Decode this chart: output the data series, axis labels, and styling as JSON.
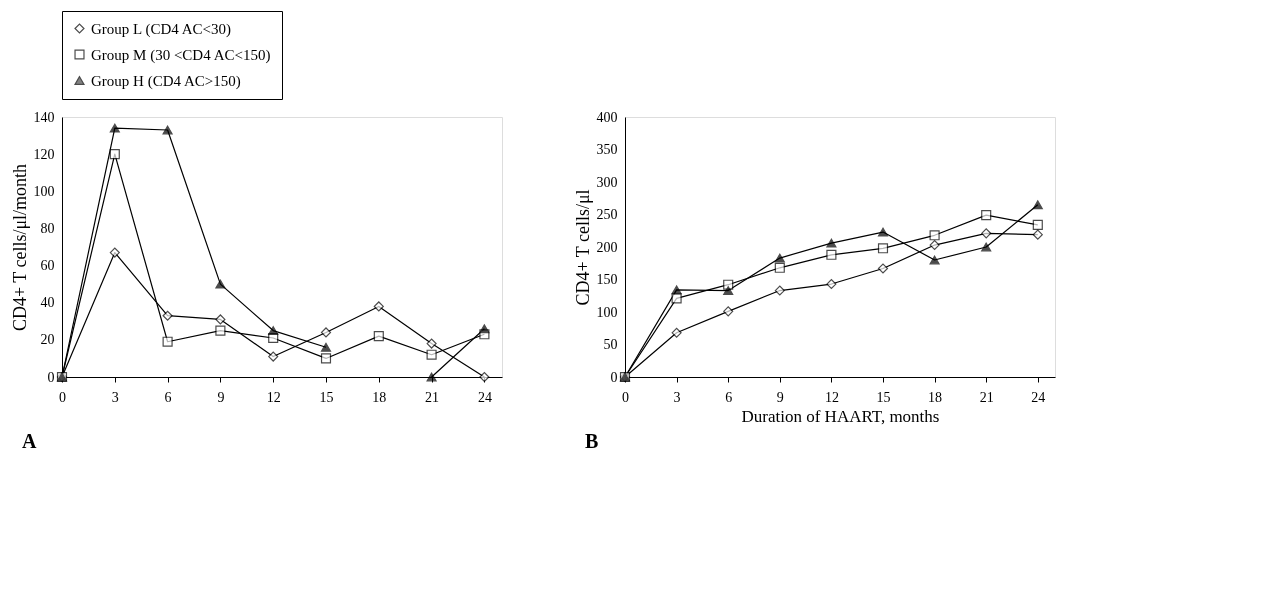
{
  "chart_data": [
    {
      "type": "line",
      "ylabel": "CD4+ T cells/μl/month",
      "x": [
        0,
        3,
        6,
        9,
        12,
        15,
        18,
        21,
        24
      ],
      "xlim": [
        0,
        25
      ],
      "xticks": [
        0,
        3,
        6,
        9,
        12,
        15,
        18,
        21,
        24
      ],
      "ylim": [
        0,
        140
      ],
      "yticks": [
        0,
        20,
        40,
        60,
        80,
        100,
        120,
        140
      ],
      "grid": false,
      "legend": "top",
      "annotations": [
        "A"
      ],
      "series": [
        {
          "name": "Group L (CD4 AC<30)",
          "color": "#000000",
          "marker": "diamond",
          "values": [
            0,
            67,
            33,
            31,
            11,
            24,
            38,
            18,
            0
          ]
        },
        {
          "name": "Group M (30 <CD4 AC<150)",
          "color": "#000000",
          "marker": "square",
          "values": [
            0,
            120,
            19,
            25,
            21,
            10,
            22,
            12,
            23
          ]
        },
        {
          "name": "Group H (CD4 AC>150)",
          "color": "#000000",
          "marker": "triangle",
          "values": [
            0,
            134,
            133,
            50,
            25,
            16,
            null,
            0,
            26
          ]
        }
      ]
    },
    {
      "type": "line",
      "ylabel": "CD4+ T cells/μl",
      "xlabel": "Duration of HAART, months",
      "x": [
        0,
        3,
        6,
        9,
        12,
        15,
        18,
        21,
        24
      ],
      "xlim": [
        0,
        25
      ],
      "xticks": [
        0,
        3,
        6,
        9,
        12,
        15,
        18,
        21,
        24
      ],
      "ylim": [
        0,
        400
      ],
      "yticks": [
        0,
        50,
        100,
        150,
        200,
        250,
        300,
        350,
        400
      ],
      "grid": false,
      "annotations": [
        "B"
      ],
      "series": [
        {
          "color": "#000000",
          "marker": "diamond",
          "values": [
            0,
            68,
            101,
            133,
            143,
            167,
            203,
            221,
            219
          ]
        },
        {
          "color": "#000000",
          "marker": "square",
          "values": [
            0,
            121,
            142,
            168,
            188,
            198,
            218,
            249,
            234
          ]
        },
        {
          "color": "#000000",
          "marker": "triangle",
          "values": [
            0,
            134,
            133,
            183,
            206,
            223,
            180,
            200,
            265
          ]
        }
      ]
    }
  ]
}
